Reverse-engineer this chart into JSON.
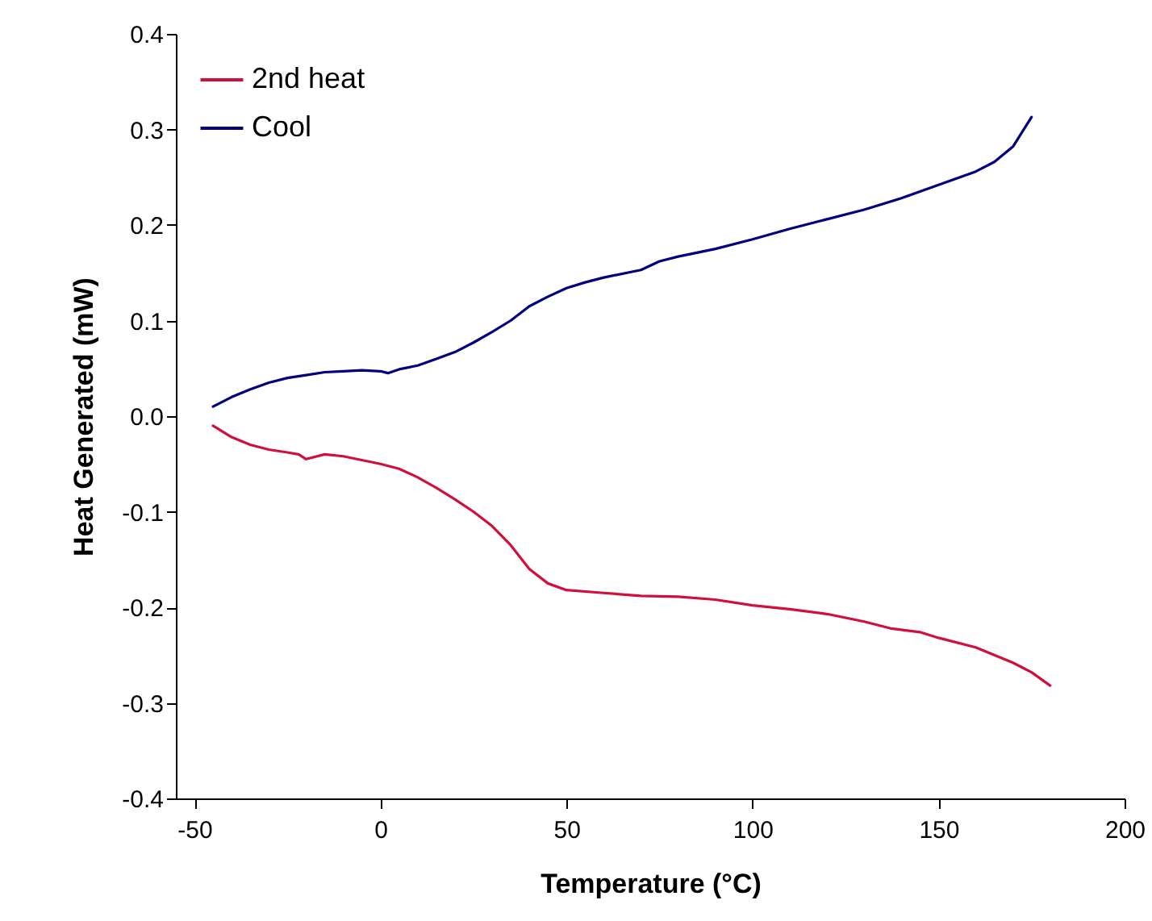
{
  "chart_data": {
    "type": "line",
    "xlabel": "Temperature (°C)",
    "ylabel": "Heat Generated (mW)",
    "xlim": [
      -55,
      200
    ],
    "xticks": [
      -50,
      0,
      50,
      100,
      150,
      200
    ],
    "ylim": [
      -0.4,
      0.4
    ],
    "yticks": [
      -0.4,
      -0.3,
      -0.2,
      -0.1,
      {
        "value": 0,
        "label": "0.0"
      },
      0.1,
      0.2,
      0.3,
      0.4
    ],
    "grid": false,
    "legend": "top left",
    "series": [
      {
        "name": "2nd heat",
        "color": "#d0103a",
        "x": [
          -45,
          -40,
          -35,
          -30,
          -25,
          -22,
          -20,
          -15,
          -10,
          -5,
          0,
          5,
          10,
          15,
          20,
          25,
          30,
          35,
          40,
          45,
          50,
          60,
          70,
          80,
          90,
          100,
          110,
          120,
          130,
          137,
          145,
          150,
          160,
          170,
          175,
          180
        ],
        "values": [
          -0.01,
          -0.022,
          -0.03,
          -0.035,
          -0.038,
          -0.04,
          -0.045,
          -0.04,
          -0.042,
          -0.046,
          -0.05,
          -0.055,
          -0.064,
          -0.075,
          -0.087,
          -0.1,
          -0.115,
          -0.135,
          -0.16,
          -0.175,
          -0.182,
          -0.185,
          -0.188,
          -0.189,
          -0.192,
          -0.198,
          -0.202,
          -0.207,
          -0.215,
          -0.222,
          -0.226,
          -0.232,
          -0.242,
          -0.258,
          -0.268,
          -0.282
        ]
      },
      {
        "name": "Cool",
        "color": "#000080",
        "x": [
          -45,
          -40,
          -35,
          -30,
          -25,
          -20,
          -15,
          -10,
          -5,
          0,
          2,
          5,
          10,
          15,
          20,
          25,
          30,
          35,
          40,
          45,
          50,
          55,
          60,
          70,
          75,
          80,
          90,
          100,
          110,
          120,
          130,
          140,
          150,
          160,
          165,
          170,
          175
        ],
        "values": [
          0.01,
          0.02,
          0.028,
          0.035,
          0.04,
          0.043,
          0.046,
          0.047,
          0.048,
          0.047,
          0.045,
          0.049,
          0.053,
          0.06,
          0.067,
          0.077,
          0.088,
          0.1,
          0.115,
          0.125,
          0.134,
          0.14,
          0.145,
          0.153,
          0.162,
          0.167,
          0.175,
          0.185,
          0.196,
          0.206,
          0.216,
          0.228,
          0.242,
          0.256,
          0.266,
          0.282,
          0.313
        ]
      }
    ]
  }
}
